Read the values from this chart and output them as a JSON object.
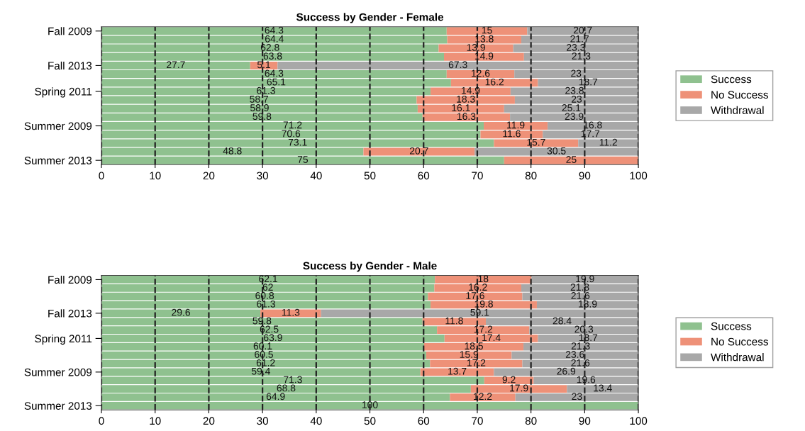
{
  "chart_data": [
    {
      "type": "bar",
      "orientation": "horizontal",
      "stacked": true,
      "title": "Success by Gender - Female",
      "categories": [
        "Fall 2009",
        null,
        null,
        null,
        "Fall 2013",
        null,
        null,
        "Spring 2011",
        null,
        null,
        null,
        "Summer 2009",
        null,
        null,
        null,
        "Summer 2013"
      ],
      "series": [
        {
          "name": "Success",
          "color": "#8fc18f",
          "values": [
            64.3,
            64.4,
            62.8,
            63.8,
            27.7,
            64.3,
            65.1,
            61.3,
            58.7,
            58.9,
            59.8,
            71.2,
            70.6,
            73.1,
            48.8,
            75
          ],
          "value_labels": [
            "64.3",
            "64.4",
            "62.8",
            "63.8",
            "27.7",
            "64.3",
            "65.1",
            "61.3",
            "58.7",
            "58.9",
            "59.8",
            "71.2",
            "70.6",
            "73.1",
            "48.8",
            "75"
          ]
        },
        {
          "name": "No Success",
          "color": "#ee9178",
          "values": [
            15,
            13.8,
            13.9,
            14.9,
            5.1,
            12.6,
            16.2,
            14.9,
            18.3,
            16.1,
            16.3,
            11.9,
            11.6,
            15.7,
            20.7,
            25
          ],
          "value_labels": [
            "15",
            "13.8",
            "13.9",
            "14.9",
            "5.1",
            "12.6",
            "16.2",
            "14.9",
            "18.3",
            "16.1",
            "16.3",
            "11.9",
            "11.6",
            "15.7",
            "20.7",
            "25"
          ]
        },
        {
          "name": "Withdrawal",
          "color": "#a8a8a8",
          "values": [
            20.7,
            21.7,
            23.3,
            21.3,
            67.3,
            23,
            18.7,
            23.8,
            23,
            25.1,
            23.9,
            16.8,
            17.7,
            11.2,
            30.5,
            0
          ],
          "value_labels": [
            "20.7",
            "21.7",
            "23.3",
            "21.3",
            "67.3",
            "23",
            "18.7",
            "23.8",
            "23",
            "25.1",
            "23.9",
            "16.8",
            "17.7",
            "11.2",
            "30.5",
            null
          ]
        }
      ],
      "xlim": [
        0,
        100
      ],
      "xticks": [
        0,
        10,
        20,
        30,
        40,
        50,
        60,
        70,
        80,
        90,
        100
      ],
      "grid": "x",
      "line_style": "dashed",
      "legend": "right"
    },
    {
      "type": "bar",
      "orientation": "horizontal",
      "stacked": true,
      "title": "Success by Gender - Male",
      "categories": [
        "Fall 2009",
        null,
        null,
        null,
        "Fall 2013",
        null,
        null,
        "Spring 2011",
        null,
        null,
        null,
        "Summer 2009",
        null,
        null,
        null,
        "Summer 2013"
      ],
      "series": [
        {
          "name": "Success",
          "color": "#8fc18f",
          "values": [
            62.1,
            62,
            60.8,
            61.3,
            29.6,
            59.8,
            62.5,
            63.9,
            60.1,
            60.5,
            61.2,
            59.4,
            71.3,
            68.8,
            64.9,
            100
          ],
          "value_labels": [
            "62.1",
            "62",
            "60.8",
            "61.3",
            "29.6",
            "59.8",
            "62.5",
            "63.9",
            "60.1",
            "60.5",
            "61.2",
            "59.4",
            "71.3",
            "68.8",
            "64.9",
            "100"
          ]
        },
        {
          "name": "No Success",
          "color": "#ee9178",
          "values": [
            18,
            16.2,
            17.6,
            19.8,
            11.3,
            11.8,
            17.2,
            17.4,
            18.5,
            15.9,
            17.2,
            13.7,
            9.2,
            17.9,
            12.2,
            0
          ],
          "value_labels": [
            "18",
            "16.2",
            "17.6",
            "19.8",
            "11.3",
            "11.8",
            "17.2",
            "17.4",
            "18.5",
            "15.9",
            "17.2",
            "13.7",
            "9.2",
            "17.9",
            "12.2",
            null
          ]
        },
        {
          "name": "Withdrawal",
          "color": "#a8a8a8",
          "values": [
            19.9,
            21.8,
            21.6,
            18.9,
            59.1,
            28.4,
            20.3,
            18.7,
            21.3,
            23.6,
            21.6,
            26.9,
            19.6,
            13.4,
            23,
            0
          ],
          "value_labels": [
            "19.9",
            "21.8",
            "21.6",
            "18.9",
            "59.1",
            "28.4",
            "20.3",
            "18.7",
            "21.3",
            "23.6",
            "21.6",
            "26.9",
            "19.6",
            "13.4",
            "23",
            null
          ]
        }
      ],
      "xlim": [
        0,
        100
      ],
      "xticks": [
        0,
        10,
        20,
        30,
        40,
        50,
        60,
        70,
        80,
        90,
        100
      ],
      "grid": "x",
      "line_style": "dashed",
      "legend": "right"
    }
  ]
}
